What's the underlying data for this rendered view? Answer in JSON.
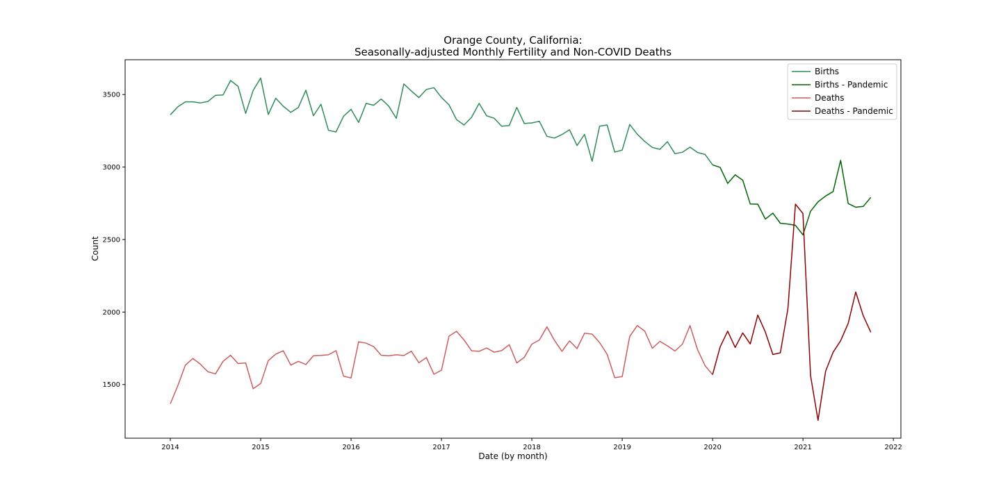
{
  "chart_data": {
    "type": "line",
    "title": "Orange County, California:",
    "subtitle": "Seasonally-adjusted Monthly Fertility and Non-COVID Deaths",
    "xlabel": "Date (by month)",
    "ylabel": "Count",
    "xlim": [
      "2013-07",
      "2022-02"
    ],
    "ylim": [
      1130,
      3740
    ],
    "x_ticks": [
      "2014",
      "2015",
      "2016",
      "2017",
      "2018",
      "2019",
      "2020",
      "2021",
      "2022"
    ],
    "y_ticks": [
      1500,
      2000,
      2500,
      3000,
      3500
    ],
    "grid": false,
    "legend_position": "top-right",
    "series": [
      {
        "name": "Births",
        "color": "#2e8b57",
        "start": "2014-01",
        "values": [
          3360,
          3415,
          3450,
          3450,
          3442,
          3452,
          3495,
          3497,
          3597,
          3556,
          3370,
          3528,
          3614,
          3362,
          3474,
          3419,
          3377,
          3411,
          3530,
          3354,
          3433,
          3253,
          3242,
          3350,
          3398,
          3307,
          3439,
          3426,
          3469,
          3420,
          3336,
          3573,
          3525,
          3479,
          3535,
          3547,
          3480,
          3429,
          3327,
          3290,
          3343,
          3439,
          3353,
          3337,
          3281,
          3286,
          3411,
          3300,
          3304,
          3315,
          3212,
          3200,
          3224,
          3257,
          3148,
          3225,
          3040,
          3282,
          3290,
          3103,
          3117,
          3293,
          3226,
          3176,
          3135,
          3122,
          3175,
          3092,
          3102,
          3137,
          3100,
          3087,
          3015
        ]
      },
      {
        "name": "Births - Pandemic",
        "color": "#006400",
        "start": "2020-01",
        "values": [
          3015,
          2997,
          2887,
          2946,
          2909,
          2745,
          2744,
          2641,
          2682,
          2612,
          2607,
          2598,
          2532,
          2695,
          2760,
          2800,
          2831,
          3046,
          2748,
          2723,
          2728,
          2791
        ]
      },
      {
        "name": "Deaths",
        "color": "#cd5c5c",
        "start": "2014-01",
        "values": [
          1367,
          1492,
          1634,
          1680,
          1640,
          1588,
          1574,
          1660,
          1702,
          1645,
          1649,
          1471,
          1507,
          1665,
          1710,
          1733,
          1634,
          1660,
          1638,
          1699,
          1701,
          1705,
          1734,
          1558,
          1545,
          1795,
          1785,
          1761,
          1702,
          1698,
          1705,
          1700,
          1730,
          1650,
          1686,
          1571,
          1599,
          1834,
          1867,
          1807,
          1733,
          1729,
          1752,
          1723,
          1734,
          1775,
          1649,
          1688,
          1779,
          1807,
          1898,
          1805,
          1729,
          1801,
          1748,
          1854,
          1848,
          1789,
          1709,
          1547,
          1555,
          1832,
          1907,
          1868,
          1750,
          1798,
          1767,
          1731,
          1779,
          1907,
          1740,
          1630,
          1568
        ]
      },
      {
        "name": "Deaths - Pandemic",
        "color": "#8b0000",
        "start": "2020-01",
        "values": [
          1568,
          1760,
          1868,
          1756,
          1856,
          1780,
          1979,
          1862,
          1707,
          1719,
          2024,
          2744,
          2679,
          1563,
          1253,
          1592,
          1723,
          1802,
          1922,
          2138,
          1975,
          1861
        ]
      }
    ]
  }
}
